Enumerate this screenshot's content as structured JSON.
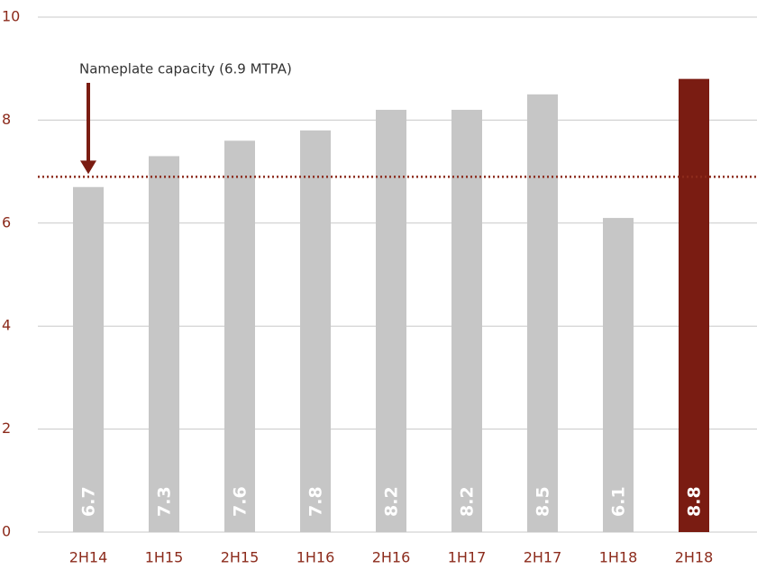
{
  "chart_data": {
    "type": "bar",
    "categories": [
      "2H14",
      "1H15",
      "2H15",
      "1H16",
      "2H16",
      "1H17",
      "2H17",
      "1H18",
      "2H18"
    ],
    "values": [
      6.7,
      7.3,
      7.6,
      7.8,
      8.2,
      8.2,
      8.5,
      6.1,
      8.8
    ],
    "colors": [
      "#c6c6c6",
      "#c6c6c6",
      "#c6c6c6",
      "#c6c6c6",
      "#c6c6c6",
      "#c6c6c6",
      "#c6c6c6",
      "#c6c6c6",
      "#7a1c12"
    ],
    "ylim": [
      0,
      10
    ],
    "yticks": [
      0,
      2,
      4,
      6,
      8,
      10
    ],
    "grid": true,
    "reference_line": {
      "value": 6.9,
      "label": "Nameplate capacity (6.9 MTPA)",
      "color": "#8c2b1c"
    }
  }
}
